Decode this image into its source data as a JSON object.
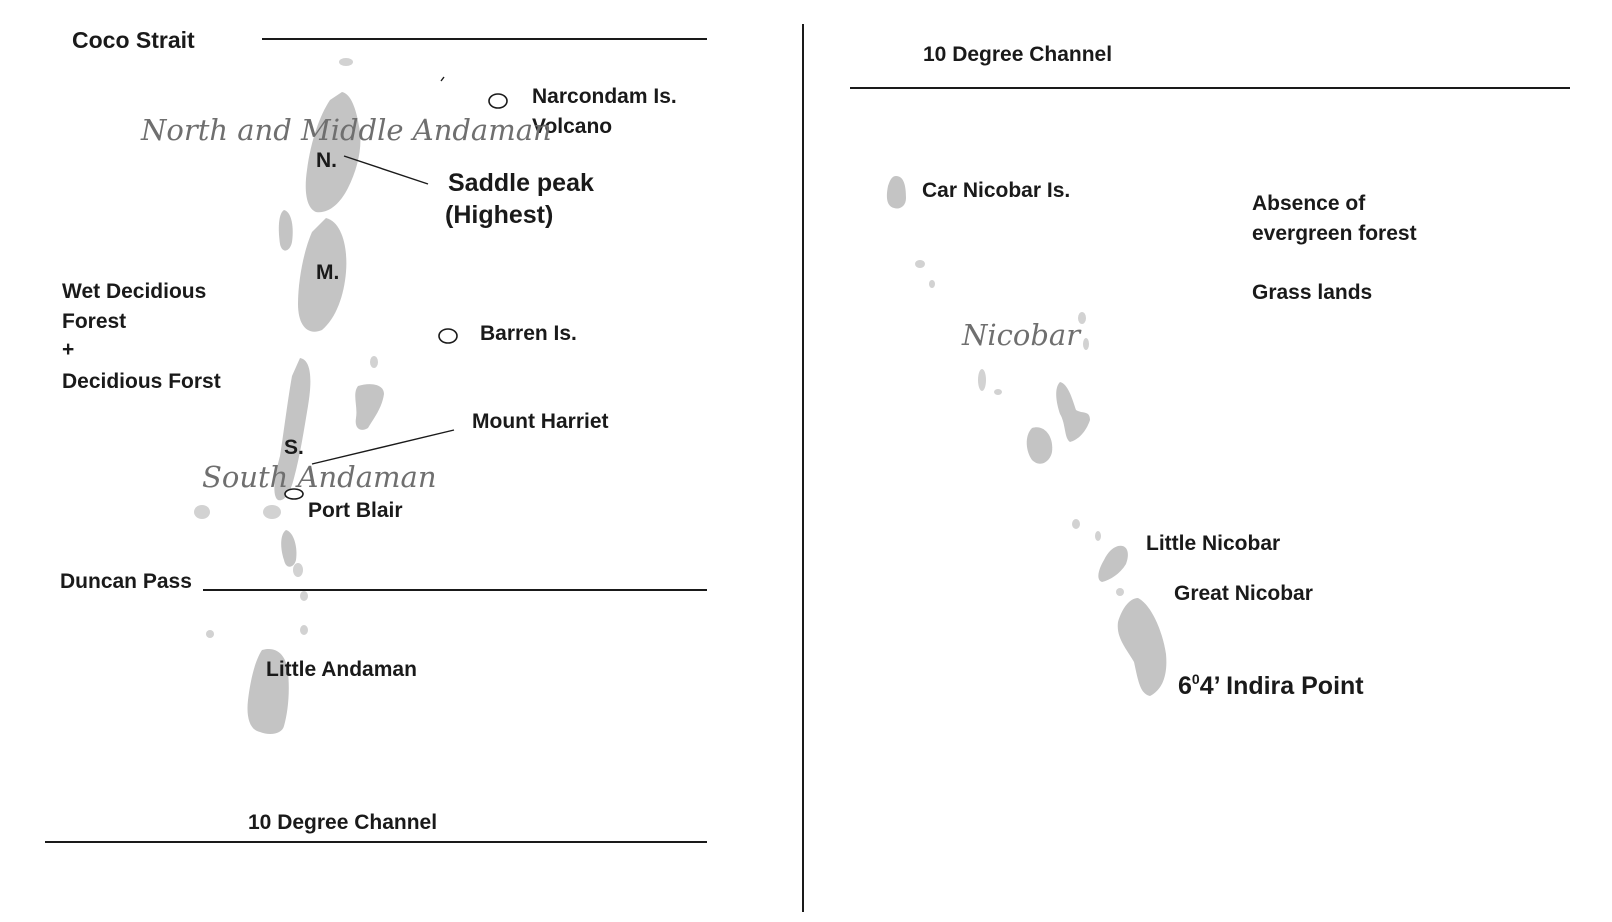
{
  "left_panel": {
    "coco_strait": "Coco Strait",
    "narcondam_line1": "Narcondam Is.",
    "narcondam_line2": "Volcano",
    "north_middle_andaman": "North and Middle Andaman",
    "n_mark": "N.",
    "saddle_peak_line1": "Saddle peak",
    "saddle_peak_line2": "(Highest)",
    "m_mark": "M.",
    "forest_line1": "Wet Decidious",
    "forest_line2": "Forest",
    "forest_line3": "+",
    "forest_line4": "Decidious Forst",
    "barren": "Barren Is.",
    "mount_harriet": "Mount Harriet",
    "s_mark": "S.",
    "south_andaman": "South Andaman",
    "port_blair": "Port Blair",
    "duncan_pass": "Duncan Pass",
    "little_andaman": "Little Andaman",
    "ten_degree_channel": "10 Degree Channel"
  },
  "right_panel": {
    "ten_degree_channel": "10 Degree Channel",
    "car_nicobar": "Car Nicobar Is.",
    "absence_line1": "Absence of",
    "absence_line2": "evergreen forest",
    "grass_lands": "Grass lands",
    "nicobar": "Nicobar",
    "little_nicobar": "Little Nicobar",
    "great_nicobar": "Great Nicobar",
    "indira_point_prefix": "6",
    "indira_point_sup": "0",
    "indira_point_rest": "4’ Indira Point"
  },
  "colors": {
    "land": "#c4c4c4",
    "ink": "#1a1a1a",
    "script_label": "#6f6f6f"
  }
}
